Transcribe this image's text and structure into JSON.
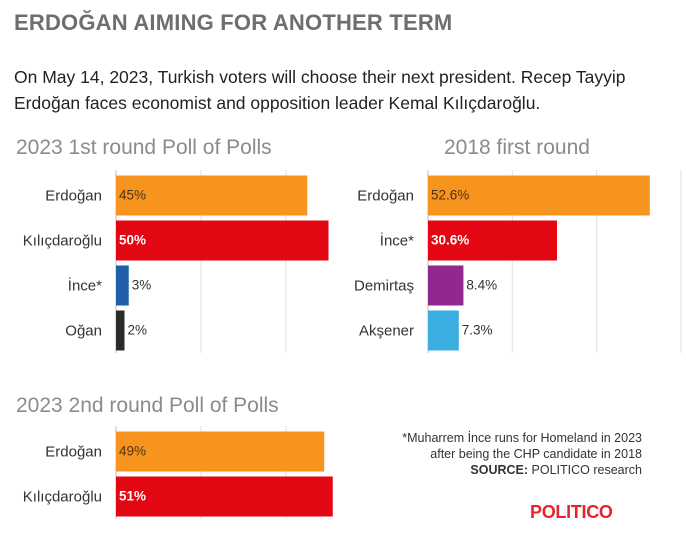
{
  "header": {
    "title": "ERDOĞAN AIMING FOR ANOTHER TERM",
    "subtitle": "On May 14, 2023, Turkish voters will choose their next president. Recep Tayyip Erdoğan faces economist and opposition leader Kemal Kılıçdaroğlu."
  },
  "footnote": {
    "note_line1": "*Muharrem İnce runs for Homeland in 2023",
    "note_line2": "after being the CHP candidate in 2018",
    "source_label": "SOURCE:",
    "source_text": "POLITICO research"
  },
  "logo": {
    "text": "POLITICO",
    "color": "#e8232a"
  },
  "chart_data": [
    {
      "type": "bar",
      "orientation": "horizontal",
      "title": "2023 1st round Poll of Polls",
      "categories": [
        "Erdoğan",
        "Kılıçdaroğlu",
        "İnce*",
        "Oğan"
      ],
      "values": [
        45,
        50,
        3,
        2
      ],
      "labels": [
        "45%",
        "50%",
        "3%",
        "2%"
      ],
      "colors": [
        "#f7941d",
        "#e30613",
        "#1f5fa8",
        "#2b2b2b"
      ],
      "xlim": [
        0,
        60
      ],
      "grid": true
    },
    {
      "type": "bar",
      "orientation": "horizontal",
      "title": "2018 first round",
      "categories": [
        "Erdoğan",
        "İnce*",
        "Demirtaş",
        "Akşener"
      ],
      "values": [
        52.6,
        30.6,
        8.4,
        7.3
      ],
      "labels": [
        "52.6%",
        "30.6%",
        "8.4%",
        "7.3%"
      ],
      "colors": [
        "#f7941d",
        "#e30613",
        "#92278f",
        "#3aaee0"
      ],
      "xlim": [
        0,
        60
      ],
      "grid": true
    },
    {
      "type": "bar",
      "orientation": "horizontal",
      "title": "2023 2nd round Poll of Polls",
      "categories": [
        "Erdoğan",
        "Kılıçdaroğlu"
      ],
      "values": [
        49,
        51
      ],
      "labels": [
        "49%",
        "51%"
      ],
      "colors": [
        "#f7941d",
        "#e30613"
      ],
      "xlim": [
        0,
        60
      ],
      "grid": true
    }
  ]
}
